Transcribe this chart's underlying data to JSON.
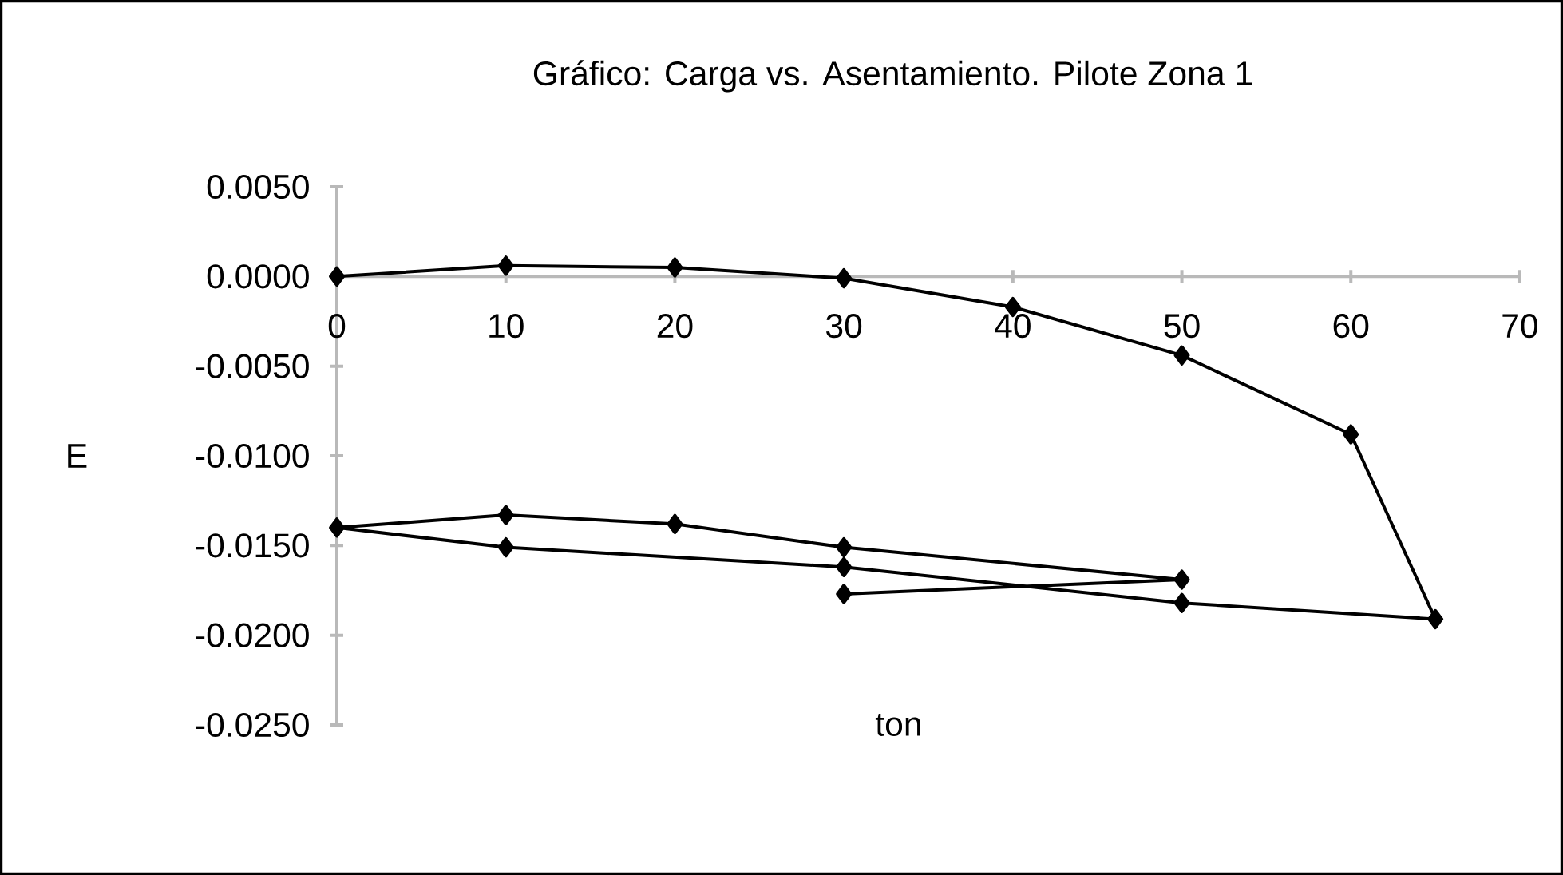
{
  "chart_data": {
    "type": "line",
    "title": "Gráfico: Carga vs. Asentamiento. Pilote Zona 1",
    "xlabel": "ton",
    "ylabel": "E",
    "x": [
      0,
      10,
      20,
      30,
      40,
      50,
      60,
      65,
      50,
      30,
      10,
      0,
      10,
      20,
      30,
      50,
      30
    ],
    "values": [
      0,
      0.0006,
      0.0005,
      -0.0001,
      -0.0017,
      -0.0044,
      -0.0088,
      -0.0191,
      -0.0182,
      -0.0162,
      -0.0151,
      -0.014,
      -0.0133,
      -0.0138,
      -0.0151,
      -0.0169,
      -0.0177
    ],
    "color": "#000000",
    "marker": "diamond",
    "xlim": [
      0,
      70
    ],
    "ylim": [
      -0.025,
      0.005
    ],
    "xticks": [
      0,
      10,
      20,
      30,
      40,
      50,
      60,
      70
    ],
    "yticks": [
      {
        "value": 0.005,
        "label": "0.0050"
      },
      {
        "value": 0,
        "label": "0.0000"
      },
      {
        "value": -0.005,
        "label": "-0.0050"
      },
      {
        "value": -0.01,
        "label": "-0.0100"
      },
      {
        "value": -0.015,
        "label": "-0.0150"
      },
      {
        "value": -0.02,
        "label": "-0.0200"
      },
      {
        "value": -0.025,
        "label": "-0.0250"
      }
    ]
  }
}
